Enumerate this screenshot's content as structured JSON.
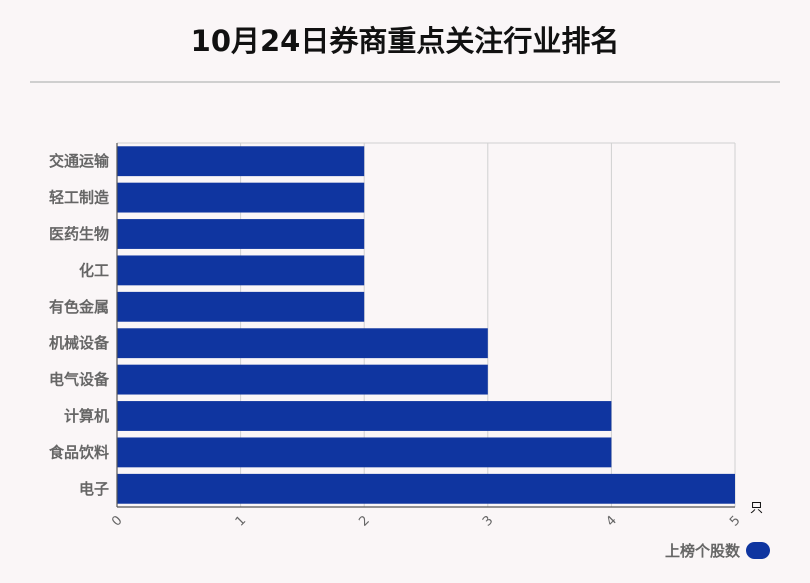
{
  "colors": {
    "bar": "#0f35a0",
    "grid": "#d0d0d0",
    "axis": "#555555",
    "background": "#faf6f7"
  },
  "chart_data": {
    "type": "bar",
    "orientation": "horizontal",
    "title": "10月24日券商重点关注行业排名",
    "categories": [
      "交通运输",
      "轻工制造",
      "医药生物",
      "化工",
      "有色金属",
      "机械设备",
      "电气设备",
      "计算机",
      "食品饮料",
      "电子"
    ],
    "series": [
      {
        "name": "上榜个股数",
        "values": [
          2,
          2,
          2,
          2,
          2,
          3,
          3,
          4,
          4,
          5
        ]
      }
    ],
    "xlim": [
      0,
      5
    ],
    "xticks": [
      "0",
      "1",
      "2",
      "3",
      "4",
      "5"
    ],
    "x_unit": "只",
    "grid": true,
    "legend_position": "bottom-right"
  }
}
